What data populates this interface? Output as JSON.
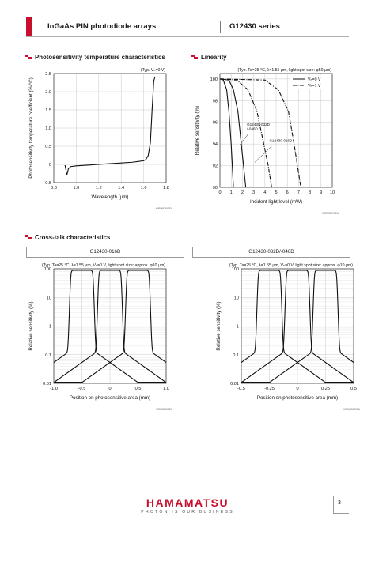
{
  "header": {
    "title": "InGaAs PIN photodiode arrays",
    "series": "G12430 series"
  },
  "sections": {
    "temp": "Photosensitivity temperature characteristics",
    "linearity": "Linearity",
    "crosstalk": "Cross-talk characteristics"
  },
  "footer": {
    "brand": "HAMAMATSU",
    "tagline": "PHOTON IS OUR BUSINESS",
    "page": "3"
  },
  "chart_data": [
    {
      "id": "temp",
      "type": "line",
      "condition": "(Typ. Vₕ=0 V)",
      "xlabel": "Wavelength (μm)",
      "ylabel": "Photosensitivity temperature coefficient (%/°C)",
      "xlim": [
        0.8,
        1.8
      ],
      "ylim": [
        -0.5,
        2.5
      ],
      "xticks": [
        "0.8",
        "1.0",
        "1.2",
        "1.4",
        "1.6",
        "1.8"
      ],
      "yticks": [
        "-0.5",
        "0",
        "0.5",
        "1.0",
        "1.5",
        "2.0",
        "2.5"
      ],
      "code": "KIRDB0560EA",
      "series": [
        {
          "x": [
            0.9,
            0.91,
            0.915,
            0.92,
            0.93,
            0.95,
            1.0,
            1.1,
            1.2,
            1.3,
            1.4,
            1.5,
            1.55,
            1.6,
            1.62,
            1.64,
            1.66,
            1.675,
            1.69,
            1.7
          ],
          "y": [
            -0.02,
            -0.18,
            -0.3,
            -0.25,
            -0.12,
            -0.06,
            -0.04,
            -0.02,
            0.0,
            0.02,
            0.04,
            0.06,
            0.08,
            0.1,
            0.14,
            0.24,
            0.6,
            1.5,
            2.3,
            2.4
          ]
        }
      ]
    },
    {
      "id": "linearity",
      "type": "line",
      "condition": "(Typ. Ta=25 °C, λ=1.55 μm, light spot size: φ50 μm)",
      "xlabel": "Incident light level (mW)",
      "ylabel": "Relative sensitivity (%)",
      "xlim": [
        0,
        10
      ],
      "ylim": [
        90,
        100.5
      ],
      "xticks": [
        "0",
        "1",
        "2",
        "3",
        "4",
        "5",
        "6",
        "7",
        "8",
        "9",
        "10"
      ],
      "yticks": [
        "90",
        "92",
        "94",
        "96",
        "98",
        "100"
      ],
      "legend": [
        "Vₕ=0 V",
        "Vₕ=1 V"
      ],
      "annotations": [
        "G12430-032D\n/-046D",
        "G12430-016D"
      ],
      "code": "KIRDB0570EA",
      "series": [
        {
          "style": "solid",
          "x": [
            0,
            0.3,
            0.6,
            0.8,
            1.0,
            1.1,
            1.2
          ],
          "y": [
            100,
            99.9,
            99.0,
            97.0,
            94.0,
            92.0,
            90.0
          ]
        },
        {
          "style": "solid",
          "x": [
            0,
            0.8,
            1.2,
            1.6,
            1.9,
            2.1,
            2.3
          ],
          "y": [
            100,
            99.9,
            99.0,
            97.0,
            94.0,
            92.0,
            90.0
          ]
        },
        {
          "style": "dashdot",
          "x": [
            0,
            1.5,
            2.5,
            3.3,
            3.9,
            4.3,
            4.6
          ],
          "y": [
            100,
            99.9,
            99.0,
            97.0,
            94.0,
            92.0,
            90.0
          ]
        },
        {
          "style": "dashdot",
          "x": [
            0,
            4.0,
            5.2,
            6.1,
            6.6,
            6.9,
            7.2
          ],
          "y": [
            100,
            99.9,
            99.0,
            97.0,
            94.0,
            92.0,
            90.0
          ]
        }
      ]
    },
    {
      "id": "ct016",
      "type": "line",
      "title": "G12430-016D",
      "condition": "(Typ. Ta=25 °C, λ=1.55 μm, Vₕ=0 V, light spot size: approx. φ10 μm)",
      "xlabel": "Position on photosensitive area (mm)",
      "ylabel": "Relative sensitivity (%)",
      "xlim": [
        -1.0,
        1.0
      ],
      "ylog": true,
      "ylim": [
        0.01,
        100
      ],
      "xticks": [
        "-1.0",
        "-0.5",
        "0",
        "0.5",
        "1.0"
      ],
      "yticks": [
        "0.01",
        "0.1",
        "1",
        "10",
        "100"
      ],
      "code": "KIRDB0568EA",
      "pitch": 0.5,
      "width": 0.4,
      "centers": [
        -0.5,
        0,
        0.5
      ]
    },
    {
      "id": "ct032",
      "type": "line",
      "title": "G12430-032D/-046D",
      "condition": "(Typ. Ta=25 °C, λ=1.55 μm, Vₕ=0 V, light spot size: approx. φ10 μm)",
      "xlabel": "Position on photosensitive area (mm)",
      "ylabel": "Relative sensitivity (%)",
      "xlim": [
        -0.5,
        0.5
      ],
      "ylog": true,
      "ylim": [
        0.01,
        100
      ],
      "xticks": [
        "-0.5",
        "-0.25",
        "0",
        "0.25",
        "0.5"
      ],
      "yticks": [
        "0.01",
        "0.1",
        "1",
        "10",
        "100"
      ],
      "code": "KIRDB0569EA",
      "pitch": 0.25,
      "width": 0.2,
      "centers": [
        -0.25,
        0,
        0.25
      ]
    }
  ]
}
